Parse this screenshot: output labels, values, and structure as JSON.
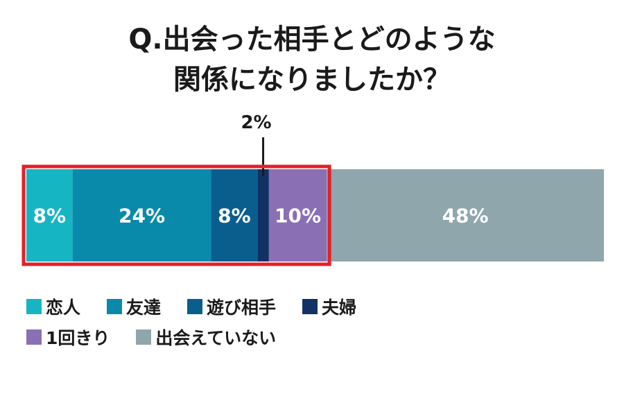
{
  "title_lines": [
    "Q.出会った相手とどのような",
    "関係になりましたか？"
  ],
  "chart_data": {
    "type": "bar",
    "orientation": "horizontal-stacked",
    "unit": "%",
    "series": [
      {
        "name": "恋人",
        "value": 8,
        "label": "8%",
        "color": "#16b5c4"
      },
      {
        "name": "友達",
        "value": 24,
        "label": "24%",
        "color": "#0a8aab"
      },
      {
        "name": "遊び相手",
        "value": 8,
        "label": "8%",
        "color": "#0a5e8e"
      },
      {
        "name": "夫婦",
        "value": 2,
        "label": "2%",
        "color": "#123266"
      },
      {
        "name": "1回きり",
        "value": 10,
        "label": "10%",
        "color": "#8b6fb5"
      },
      {
        "name": "出会えていない",
        "value": 48,
        "label": "48%",
        "color": "#8fa6ad"
      }
    ],
    "highlight_color": "#e5202a"
  },
  "legend_rows": [
    [
      "恋人",
      "友達",
      "遊び相手",
      "夫婦"
    ],
    [
      "1回きり",
      "出会えていない"
    ]
  ]
}
